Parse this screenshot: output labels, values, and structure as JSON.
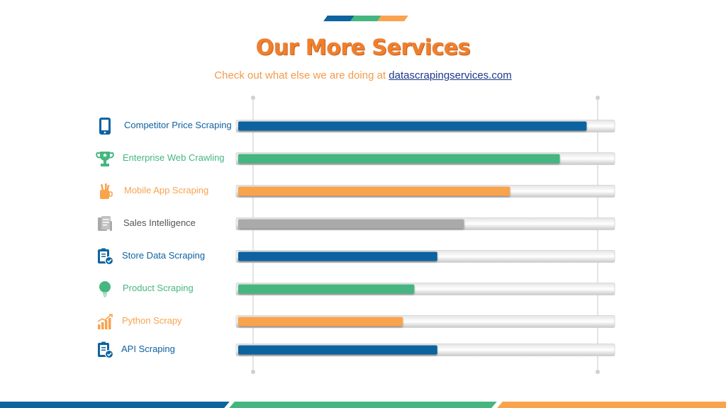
{
  "header": {
    "title": "Our More Services",
    "subtitle_prefix": "Check out what else we are doing at",
    "subtitle_link": "datascrapingservices.com"
  },
  "colors": {
    "blue": "#0f639f",
    "green": "#45b67f",
    "orange": "#f9a34e",
    "gray": "#aaaaaa",
    "title": "#f07f2c"
  },
  "chart_data": {
    "type": "bar",
    "orientation": "horizontal",
    "xlim": [
      0,
      100
    ],
    "grid": false,
    "categories": [
      "Competitor Price Scraping",
      "Enterprise Web Crawling",
      "Mobile App Scraping",
      "Sales Intelligence",
      "Store Data Scraping",
      "Product Scraping",
      "Python Scrapy",
      "API Scraping"
    ],
    "values": [
      91,
      84,
      71,
      59,
      52,
      46,
      43,
      52
    ],
    "bar_colors": [
      "#0f639f",
      "#45b67f",
      "#f9a34e",
      "#aaaaaa",
      "#0f639f",
      "#45b67f",
      "#f9a34e",
      "#0f639f"
    ],
    "icons": [
      "tablet-icon",
      "trophy-icon",
      "pen-cup-icon",
      "documents-icon",
      "clipboard-check-icon",
      "lightbulb-icon",
      "growth-chart-icon",
      "clipboard-check-icon"
    ]
  }
}
